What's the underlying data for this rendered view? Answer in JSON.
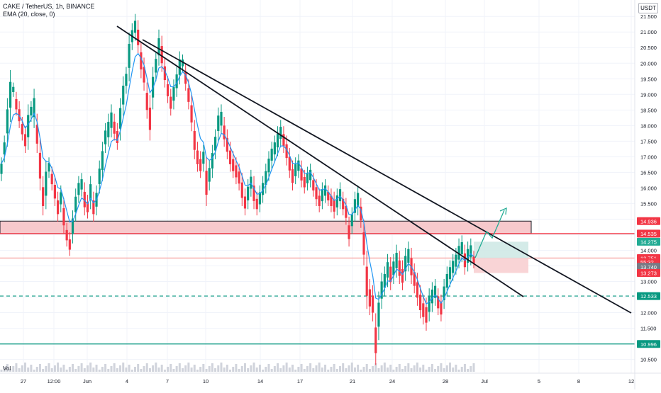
{
  "header": {
    "symbol_line": "CAKE / TetherUS, 1h, BINANCE",
    "indicator_line": "EMA (20, close, 0)",
    "currency_label": "USDT",
    "volume_label": "Vol"
  },
  "chart_data": {
    "type": "candlestick",
    "title": "CAKE / TetherUS, 1h, BINANCE",
    "indicator": "EMA (20, close, 0)",
    "ylim": [
      10.4,
      21.8
    ],
    "y_ticks": [
      "21.500",
      "21.000",
      "20.500",
      "20.000",
      "19.500",
      "19.000",
      "18.500",
      "18.000",
      "17.500",
      "17.000",
      "16.500",
      "16.000",
      "15.500",
      "15.000",
      "14.500",
      "14.000",
      "13.500",
      "13.000",
      "12.500",
      "12.000",
      "11.500",
      "11.000",
      "10.500"
    ],
    "x_ticks": [
      "27",
      "12:00",
      "Jun",
      "4",
      "7",
      "10",
      "14",
      "17",
      "21",
      "24",
      "28",
      "Jul",
      "5",
      "8",
      "12"
    ],
    "price_labels": [
      {
        "value": "14.936",
        "color": "#f23645",
        "fill": "#f23645"
      },
      {
        "value": "14.535",
        "color": "#f23645",
        "fill": "#f23645"
      },
      {
        "value": "14.275",
        "color": "#22ab94",
        "fill": "#22ab94"
      },
      {
        "value": "13.751",
        "color": "#f23645",
        "fill": "#f23645"
      },
      {
        "value": "55:32",
        "color": "#f23645",
        "fill": "#f23645"
      },
      {
        "value": "13.740",
        "color": "#787b86",
        "fill": "#787b86"
      },
      {
        "value": "13.273",
        "color": "#f23645",
        "fill": "#f23645"
      },
      {
        "value": "12.533",
        "color": "#089981",
        "fill": "#089981"
      },
      {
        "value": "10.996",
        "color": "#089981",
        "fill": "#089981"
      }
    ],
    "resistance_zone": {
      "top": 14.936,
      "bottom": 14.535
    },
    "horizontal_lines": [
      {
        "value": 14.535,
        "color": "#f23645",
        "style": "solid"
      },
      {
        "value": 12.533,
        "color": "#089981",
        "style": "dashed"
      },
      {
        "value": 10.996,
        "color": "#089981",
        "style": "solid"
      },
      {
        "value": 13.751,
        "color": "#f7a9a8",
        "style": "solid"
      }
    ],
    "position": {
      "entry": 13.751,
      "target": 14.275,
      "stop": 13.273
    },
    "candles": [
      [
        16.3,
        16.9
      ],
      [
        16.9,
        17.6
      ],
      [
        17.4,
        18.8
      ],
      [
        18.2,
        19.7
      ],
      [
        19.0,
        19.3
      ],
      [
        18.4,
        19.0
      ],
      [
        18.0,
        18.7
      ],
      [
        17.6,
        18.2
      ],
      [
        17.2,
        17.9
      ],
      [
        17.3,
        18.6
      ],
      [
        18.2,
        18.7
      ],
      [
        18.0,
        19.1
      ],
      [
        17.2,
        18.3
      ],
      [
        16.0,
        17.5
      ],
      [
        15.2,
        16.3
      ],
      [
        15.4,
        16.8
      ],
      [
        16.4,
        16.9
      ],
      [
        16.0,
        16.6
      ],
      [
        15.5,
        16.3
      ],
      [
        15.0,
        15.8
      ],
      [
        15.3,
        16.0
      ],
      [
        14.6,
        15.6
      ],
      [
        14.2,
        14.8
      ],
      [
        13.9,
        14.5
      ],
      [
        14.3,
        15.2
      ],
      [
        15.0,
        15.9
      ],
      [
        15.6,
        16.3
      ],
      [
        15.8,
        16.4
      ],
      [
        15.2,
        16.1
      ],
      [
        15.1,
        15.7
      ],
      [
        15.4,
        16.3
      ],
      [
        15.0,
        15.8
      ],
      [
        15.2,
        16.0
      ],
      [
        15.9,
        16.8
      ],
      [
        16.3,
        17.4
      ],
      [
        17.2,
        18.0
      ],
      [
        17.4,
        18.3
      ],
      [
        17.7,
        18.6
      ],
      [
        17.6,
        18.3
      ],
      [
        17.3,
        18.0
      ],
      [
        17.6,
        18.8
      ],
      [
        18.4,
        19.5
      ],
      [
        19.1,
        19.8
      ],
      [
        19.5,
        20.9
      ],
      [
        20.5,
        21.2
      ],
      [
        20.8,
        21.5
      ],
      [
        20.4,
        21.3
      ],
      [
        19.6,
        20.6
      ],
      [
        19.2,
        20.1
      ],
      [
        18.3,
        19.3
      ],
      [
        17.6,
        18.9
      ],
      [
        18.6,
        19.8
      ],
      [
        19.5,
        20.3
      ],
      [
        20.0,
        21.0
      ],
      [
        19.8,
        20.8
      ],
      [
        19.3,
        20.1
      ],
      [
        18.8,
        19.5
      ],
      [
        18.4,
        19.1
      ],
      [
        18.6,
        19.4
      ],
      [
        19.0,
        19.8
      ],
      [
        19.4,
        20.3
      ],
      [
        19.8,
        20.2
      ],
      [
        19.2,
        19.9
      ],
      [
        18.6,
        19.4
      ],
      [
        17.9,
        18.9
      ],
      [
        17.0,
        18.1
      ],
      [
        16.6,
        17.4
      ],
      [
        16.4,
        17.1
      ],
      [
        16.6,
        17.3
      ],
      [
        15.5,
        16.9
      ],
      [
        16.0,
        16.8
      ],
      [
        16.4,
        17.3
      ],
      [
        17.0,
        17.8
      ],
      [
        17.6,
        18.5
      ],
      [
        17.8,
        18.6
      ],
      [
        17.4,
        18.2
      ],
      [
        17.0,
        17.8
      ],
      [
        16.6,
        17.4
      ],
      [
        16.4,
        17.1
      ],
      [
        16.2,
        16.9
      ],
      [
        16.0,
        16.7
      ],
      [
        15.5,
        16.4
      ],
      [
        15.2,
        15.9
      ],
      [
        15.4,
        16.2
      ],
      [
        15.8,
        16.5
      ],
      [
        15.4,
        16.3
      ],
      [
        15.2,
        15.8
      ],
      [
        15.3,
        16.0
      ],
      [
        15.6,
        16.3
      ],
      [
        15.9,
        16.7
      ],
      [
        16.3,
        17.1
      ],
      [
        16.7,
        17.4
      ],
      [
        16.9,
        17.6
      ],
      [
        17.1,
        17.9
      ],
      [
        17.4,
        18.1
      ],
      [
        17.2,
        17.9
      ],
      [
        16.8,
        17.6
      ],
      [
        16.4,
        17.2
      ],
      [
        16.0,
        16.8
      ],
      [
        16.2,
        16.9
      ],
      [
        16.4,
        17.0
      ],
      [
        16.1,
        16.8
      ],
      [
        15.9,
        16.5
      ],
      [
        16.0,
        16.6
      ],
      [
        16.1,
        16.7
      ],
      [
        15.8,
        16.4
      ],
      [
        15.5,
        16.2
      ],
      [
        15.3,
        15.9
      ],
      [
        15.4,
        16.1
      ],
      [
        15.6,
        16.2
      ],
      [
        15.5,
        16.0
      ],
      [
        15.3,
        15.9
      ],
      [
        15.1,
        15.8
      ],
      [
        15.2,
        15.9
      ],
      [
        15.4,
        16.1
      ],
      [
        15.2,
        15.8
      ],
      [
        14.9,
        15.6
      ],
      [
        14.2,
        15.0
      ],
      [
        14.6,
        15.3
      ],
      [
        15.0,
        15.8
      ],
      [
        15.2,
        16.0
      ],
      [
        14.8,
        15.6
      ],
      [
        13.6,
        14.9
      ],
      [
        12.2,
        13.9
      ],
      [
        12.0,
        13.0
      ],
      [
        11.8,
        12.8
      ],
      [
        10.4,
        11.9
      ],
      [
        11.2,
        12.6
      ],
      [
        12.2,
        13.2
      ],
      [
        12.6,
        13.4
      ],
      [
        12.9,
        13.8
      ],
      [
        12.8,
        13.7
      ],
      [
        13.0,
        13.8
      ],
      [
        13.2,
        14.1
      ],
      [
        13.0,
        13.9
      ],
      [
        12.8,
        13.6
      ],
      [
        13.1,
        14.0
      ],
      [
        13.4,
        14.2
      ],
      [
        13.0,
        14.0
      ],
      [
        12.7,
        13.5
      ],
      [
        12.3,
        13.2
      ],
      [
        11.9,
        12.8
      ],
      [
        11.7,
        12.5
      ],
      [
        11.5,
        12.4
      ],
      [
        11.8,
        12.7
      ],
      [
        12.1,
        12.9
      ],
      [
        12.3,
        13.0
      ],
      [
        12.0,
        12.7
      ],
      [
        11.8,
        12.5
      ],
      [
        12.2,
        13.0
      ],
      [
        12.6,
        13.4
      ],
      [
        12.9,
        13.6
      ],
      [
        13.1,
        13.8
      ],
      [
        13.3,
        14.0
      ],
      [
        13.5,
        14.3
      ],
      [
        13.7,
        14.4
      ],
      [
        13.3,
        14.1
      ],
      [
        13.4,
        14.2
      ],
      [
        13.6,
        14.3
      ],
      [
        13.5,
        13.9
      ]
    ]
  }
}
